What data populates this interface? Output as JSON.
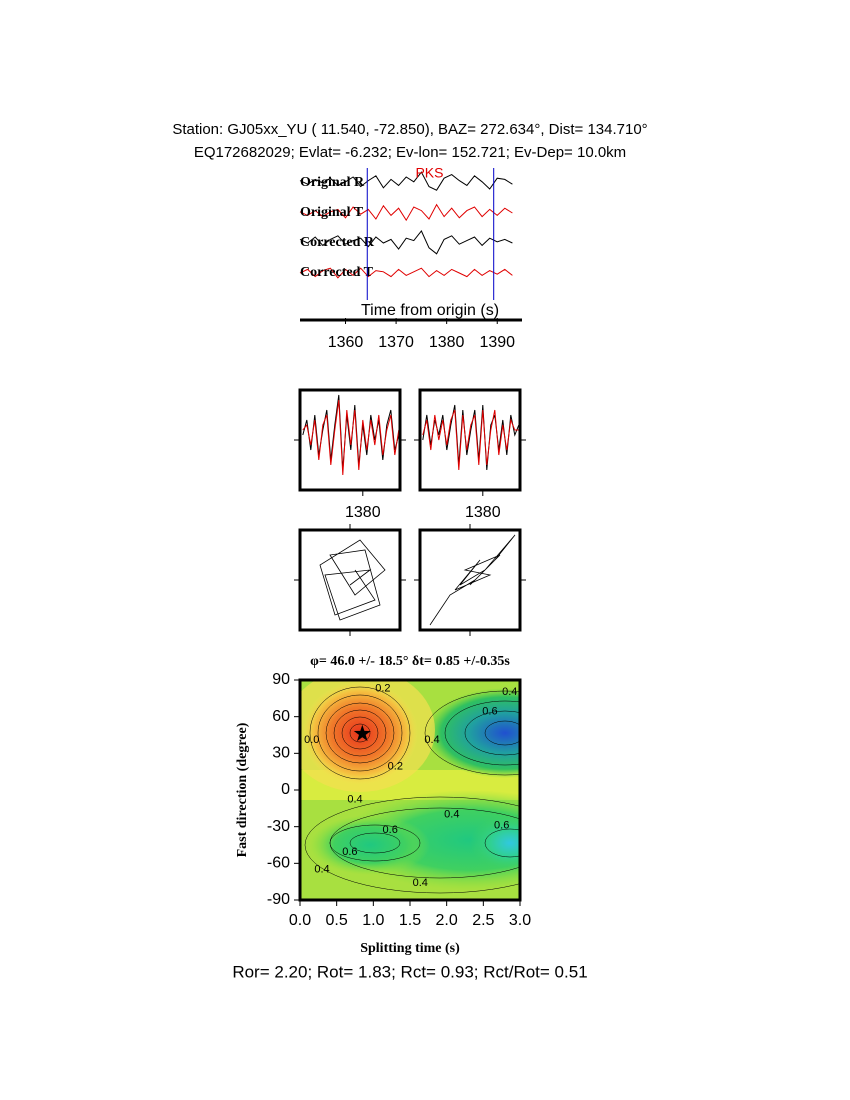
{
  "chart_data": [
    {
      "type": "traces",
      "title": "Station: GJ05xx_YU (  11.540,  -72.850), BAZ=  272.634°, Dist=  134.710°",
      "subtitle": "EQ172682029; Evlat=  -6.232; Ev-lon= 152.721; Ev-Dep= 10.0km",
      "x_label": "Time from origin (s)",
      "phase": {
        "label": "PKS",
        "x": 1376.6,
        "color": "#e00000"
      },
      "window": [
        1364.3,
        1389.3
      ],
      "window_color": "#0000c8",
      "xlim": [
        1351,
        1394.5
      ],
      "xticks": [
        1360,
        1370,
        1380,
        1390
      ],
      "ylim": [
        -1,
        1
      ],
      "x": [
        1351,
        1352.5,
        1354,
        1355.5,
        1357,
        1358.5,
        1360,
        1361.5,
        1363,
        1364.5,
        1366,
        1367.5,
        1369,
        1370.5,
        1372,
        1373.5,
        1375,
        1376.5,
        1378,
        1379.5,
        1381,
        1382.5,
        1384,
        1385.5,
        1387,
        1388.5,
        1390,
        1391.5,
        1393
      ],
      "series": [
        {
          "name": "Original R",
          "color": "#000000",
          "values": [
            0.2,
            -0.1,
            0.3,
            0.0,
            0.4,
            -0.2,
            0.1,
            0.5,
            -0.3,
            0.2,
            0.6,
            -0.4,
            0.3,
            -0.2,
            0.5,
            0.1,
            0.9,
            -0.3,
            -0.6,
            0.4,
            0.7,
            0.2,
            -0.2,
            0.6,
            0.1,
            -0.5,
            0.4,
            0.3,
            -0.1
          ]
        },
        {
          "name": "Original T",
          "color": "#e00000",
          "values": [
            0.1,
            -0.2,
            0.2,
            -0.3,
            0.1,
            0.3,
            -0.4,
            0.5,
            -0.1,
            0.3,
            -0.5,
            0.6,
            -0.2,
            0.4,
            -0.6,
            0.5,
            0.2,
            -0.5,
            0.7,
            -0.3,
            0.4,
            -0.4,
            0.2,
            0.5,
            -0.3,
            0.3,
            -0.2,
            0.4,
            0.0
          ]
        },
        {
          "name": "Corrected R",
          "color": "#000000",
          "values": [
            0.3,
            0.0,
            0.5,
            -0.2,
            0.3,
            0.6,
            -0.1,
            0.2,
            0.4,
            -0.3,
            0.5,
            0.0,
            0.3,
            -0.5,
            0.4,
            0.2,
            1.0,
            -0.4,
            -0.9,
            0.3,
            0.6,
            -0.1,
            0.2,
            0.5,
            -0.2,
            0.4,
            0.1,
            0.3,
            0.0
          ]
        },
        {
          "name": "Corrected T",
          "color": "#e00000",
          "values": [
            0.0,
            0.3,
            -0.3,
            0.2,
            0.4,
            -0.4,
            0.3,
            -0.2,
            0.4,
            -0.3,
            0.2,
            0.1,
            -0.3,
            0.3,
            -0.2,
            0.1,
            0.4,
            -0.3,
            0.2,
            -0.2,
            0.3,
            0.0,
            -0.3,
            0.3,
            -0.2,
            0.2,
            -0.1,
            0.3,
            -0.2
          ]
        }
      ]
    },
    {
      "type": "overlay",
      "xlim": [
        1364.3,
        1389.3
      ],
      "xticks": [
        1380
      ],
      "ylim": [
        -1,
        1
      ],
      "x": [
        1365,
        1366,
        1367,
        1368,
        1369,
        1370,
        1371,
        1372,
        1373,
        1374,
        1375,
        1376,
        1377,
        1378,
        1379,
        1380,
        1381,
        1382,
        1383,
        1384,
        1385,
        1386,
        1387,
        1388,
        1389
      ],
      "panels": [
        {
          "series": [
            {
              "color": "#000000",
              "values": [
                0.1,
                0.4,
                -0.2,
                0.5,
                -0.3,
                0.2,
                0.6,
                -0.4,
                0.3,
                0.9,
                -0.6,
                0.5,
                -0.2,
                0.7,
                -0.5,
                0.3,
                -0.3,
                0.5,
                0.0,
                0.4,
                -0.4,
                0.3,
                0.6,
                -0.2,
                0.1
              ]
            },
            {
              "color": "#e00000",
              "values": [
                0.2,
                0.3,
                -0.1,
                0.4,
                -0.4,
                0.3,
                0.5,
                -0.5,
                0.2,
                0.8,
                -0.7,
                0.6,
                -0.1,
                0.6,
                -0.6,
                0.4,
                -0.2,
                0.4,
                -0.1,
                0.5,
                -0.3,
                0.2,
                0.5,
                -0.3,
                0.2
              ]
            }
          ]
        },
        {
          "series": [
            {
              "color": "#000000",
              "values": [
                0.0,
                0.5,
                -0.1,
                0.4,
                0.1,
                0.5,
                -0.2,
                0.3,
                0.7,
                -0.5,
                0.6,
                -0.3,
                0.2,
                0.6,
                -0.4,
                0.7,
                -0.6,
                0.3,
                0.5,
                -0.2,
                0.4,
                -0.3,
                0.5,
                0.1,
                0.3
              ]
            },
            {
              "color": "#e00000",
              "values": [
                0.1,
                0.4,
                -0.2,
                0.5,
                0.0,
                0.4,
                -0.1,
                0.4,
                0.6,
                -0.6,
                0.5,
                -0.2,
                0.3,
                0.5,
                -0.5,
                0.6,
                -0.5,
                0.2,
                0.6,
                -0.3,
                0.3,
                -0.2,
                0.4,
                0.2,
                0.2
              ]
            }
          ]
        }
      ]
    },
    {
      "type": "particle-motion",
      "xlim": [
        -1,
        1
      ],
      "ylim": [
        -1,
        1
      ],
      "panels": [
        {
          "x": [
            0.1,
            0.5,
            -0.3,
            -0.6,
            0.2,
            0.7,
            0.1,
            -0.4,
            0.3,
            0.6,
            -0.2,
            -0.5,
            0.4,
            0.0
          ],
          "y": [
            0.2,
            -0.4,
            -0.7,
            0.3,
            0.8,
            0.2,
            -0.3,
            0.5,
            0.6,
            -0.5,
            -0.8,
            0.1,
            0.2,
            -0.1
          ]
        },
        {
          "x": [
            -0.8,
            -0.4,
            0.1,
            0.5,
            0.9,
            0.3,
            -0.2,
            0.2,
            -0.3,
            0.4,
            -0.1,
            0.6,
            0.0
          ],
          "y": [
            -0.9,
            -0.3,
            0.0,
            0.4,
            0.9,
            0.2,
            -0.1,
            0.4,
            -0.2,
            0.1,
            0.2,
            0.5,
            -0.1
          ]
        }
      ]
    },
    {
      "type": "contour",
      "title": "φ= 46.0 +/- 18.5° δt= 0.85 +/-0.35s",
      "x_label": "Splitting time (s)",
      "y_label": "Fast direction (degree)",
      "xlim": [
        0,
        3
      ],
      "ylim": [
        -90,
        90
      ],
      "xticks": [
        {
          "value": 0,
          "label": "0.0"
        },
        0.5,
        {
          "value": 1,
          "label": "1.0"
        },
        1.5,
        {
          "value": 2,
          "label": "2.0"
        },
        2.5,
        {
          "value": 3,
          "label": "3.0"
        }
      ],
      "yticks": [
        -90,
        -60,
        -30,
        0,
        30,
        60,
        90
      ],
      "best": {
        "x": 0.85,
        "y": 46
      },
      "contour_labels": [
        {
          "text": "0.2",
          "x": 1.13,
          "y": 83
        },
        {
          "text": "0.4",
          "x": 2.86,
          "y": 80
        },
        {
          "text": "0.6",
          "x": 2.59,
          "y": 64
        },
        {
          "text": "0.4",
          "x": 1.8,
          "y": 41
        },
        {
          "text": "0.2",
          "x": 1.3,
          "y": 19
        },
        {
          "text": "0.0",
          "x": 0.16,
          "y": 41
        },
        {
          "text": "0.4",
          "x": 0.75,
          "y": -8
        },
        {
          "text": "0.4",
          "x": 2.07,
          "y": -20
        },
        {
          "text": "0.6",
          "x": 1.23,
          "y": -33
        },
        {
          "text": "0.6",
          "x": 0.68,
          "y": -51
        },
        {
          "text": "0.6",
          "x": 2.75,
          "y": -29
        },
        {
          "text": "0.4",
          "x": 0.3,
          "y": -65
        },
        {
          "text": "0.4",
          "x": 1.64,
          "y": -76
        }
      ],
      "note": "Ror= 2.20; Rot= 1.83; Rct= 0.93; Rct/Rot= 0.51"
    }
  ]
}
